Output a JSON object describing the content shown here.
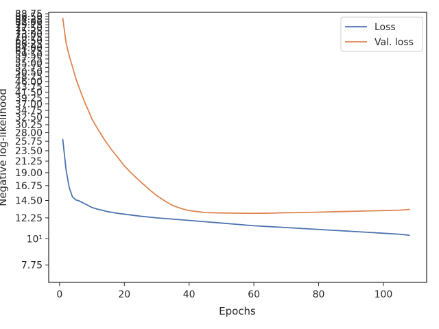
{
  "chart_data": {
    "type": "line",
    "xlabel": "Epochs",
    "ylabel": "Negative log-likelihood",
    "yscale": "log",
    "xlim": [
      -3.35,
      113.35
    ],
    "ylim": [
      6.55,
      90.0
    ],
    "grid": false,
    "legend_position": "top-right",
    "x_ticks": [
      0,
      20,
      40,
      60,
      80,
      100
    ],
    "x_tick_labels": [
      "0",
      "20",
      "40",
      "60",
      "80",
      "100"
    ],
    "y_ticks": [
      7.75,
      10,
      12.25,
      14.5,
      16.75,
      19.0,
      21.25,
      23.5,
      25.75,
      28.0,
      30.25,
      32.5,
      34.75,
      37.0,
      39.25,
      41.5,
      43.75,
      46.0,
      48.25,
      50.5,
      52.75,
      55.0,
      57.25,
      59.5,
      61.75,
      64.0,
      66.25,
      68.5,
      70.75,
      73.0,
      75.25,
      77.5,
      79.75,
      82.0,
      84.25,
      86.5,
      88.75
    ],
    "y_tick_labels": [
      "7.75",
      "10¹",
      "12.25",
      "14.50",
      "16.75",
      "19.00",
      "21.25",
      "23.50",
      "25.75",
      "28.00",
      "30.25",
      "32.50",
      "34.75",
      "37.00",
      "39.25",
      "41.50",
      "43.75",
      "46.00",
      "48.25",
      "50.50",
      "52.75",
      "55.00",
      "57.25",
      "59.50",
      "61.75",
      "64.00",
      "66.25",
      "68.50",
      "70.75",
      "73.00",
      "75.25",
      "77.50",
      "79.75",
      "82.00",
      "84.25",
      "86.50",
      "88.75"
    ],
    "series": [
      {
        "name": "Loss",
        "color": "#4c72b0",
        "x": [
          1,
          2,
          3,
          4,
          5,
          6,
          8,
          10,
          12,
          15,
          18,
          20,
          25,
          30,
          35,
          40,
          45,
          50,
          55,
          60,
          65,
          70,
          75,
          80,
          85,
          90,
          95,
          100,
          105,
          108
        ],
        "y": [
          26.2,
          19.6,
          16.4,
          15.0,
          14.6,
          14.45,
          14.0,
          13.55,
          13.3,
          13.0,
          12.8,
          12.7,
          12.45,
          12.25,
          12.1,
          11.95,
          11.8,
          11.65,
          11.5,
          11.35,
          11.25,
          11.15,
          11.05,
          10.95,
          10.85,
          10.75,
          10.65,
          10.55,
          10.45,
          10.35
        ]
      },
      {
        "name": "Val. loss",
        "color": "#dd8452",
        "x": [
          1,
          2,
          3,
          4,
          5,
          6,
          7,
          8,
          9,
          10,
          12,
          14,
          16,
          18,
          20,
          22,
          25,
          28,
          30,
          33,
          35,
          38,
          40,
          45,
          50,
          55,
          60,
          65,
          70,
          75,
          80,
          85,
          90,
          95,
          100,
          105,
          108
        ],
        "y": [
          85.0,
          67.0,
          59.0,
          53.0,
          47.5,
          43.5,
          40.0,
          37.0,
          34.5,
          32.0,
          28.7,
          26.0,
          23.8,
          22.0,
          20.3,
          19.0,
          17.4,
          16.0,
          15.2,
          14.3,
          13.8,
          13.35,
          13.15,
          12.9,
          12.85,
          12.82,
          12.8,
          12.82,
          12.88,
          12.9,
          12.95,
          13.0,
          13.05,
          13.1,
          13.15,
          13.2,
          13.3
        ]
      }
    ]
  }
}
